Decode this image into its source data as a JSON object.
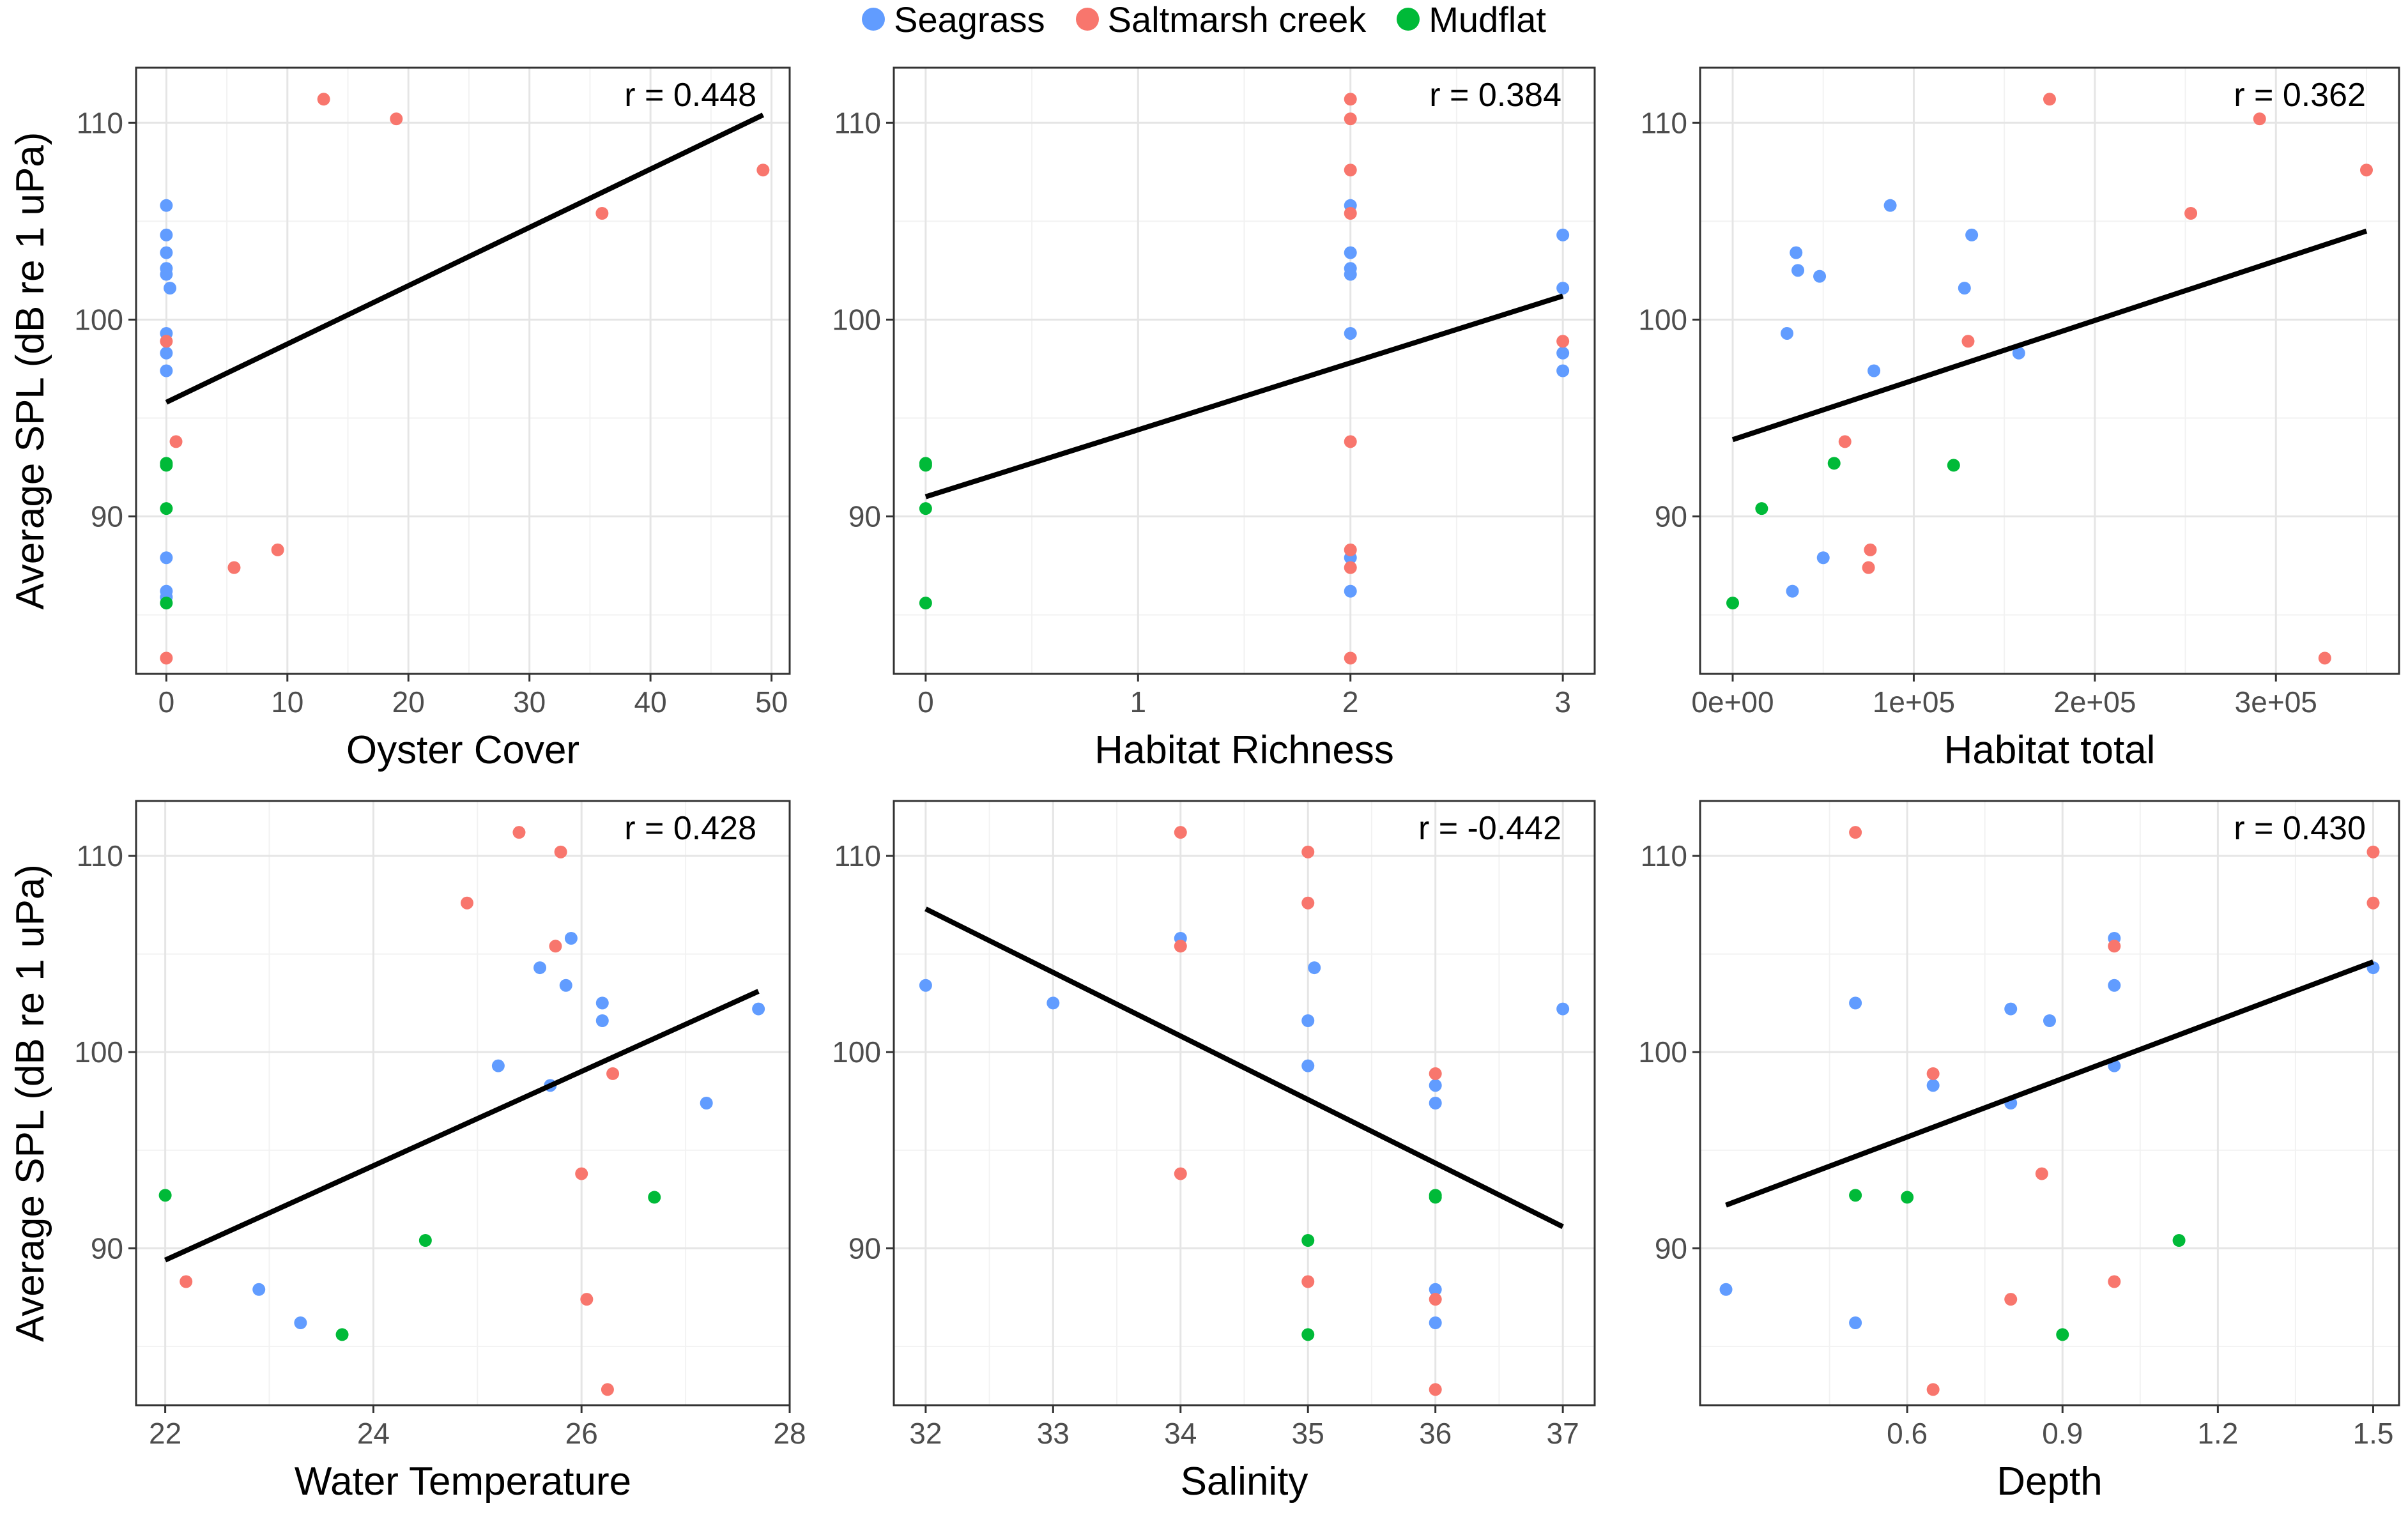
{
  "legend": {
    "position": "top",
    "items": [
      {
        "label": "Seagrass",
        "color": "#619CFF"
      },
      {
        "label": "Saltmarsh creek",
        "color": "#F8766D"
      },
      {
        "label": "Mudflat",
        "color": "#00BA38"
      }
    ]
  },
  "chart_data": [
    {
      "type": "scatter",
      "xlabel": "Oyster Cover",
      "ylabel": "Average SPL (dB re 1 uPa)",
      "annotation": "r = 0.448",
      "xlim": [
        -2.5,
        51.5
      ],
      "ylim": [
        82,
        112.8
      ],
      "xticks": [
        0,
        10,
        20,
        30,
        40,
        50
      ],
      "xtick_labels": [
        "0",
        "10",
        "20",
        "30",
        "40",
        "50"
      ],
      "yticks": [
        90,
        100,
        110
      ],
      "ytick_labels": [
        "90",
        "100",
        "110"
      ],
      "grid": true,
      "fit_line": {
        "x": [
          0,
          49.3
        ],
        "y": [
          95.8,
          110.4
        ]
      },
      "series": [
        {
          "name": "Seagrass",
          "color": "#619CFF",
          "points": [
            [
              0,
              105.8
            ],
            [
              0,
              104.3
            ],
            [
              0,
              103.4
            ],
            [
              0,
              102.6
            ],
            [
              0,
              102.3
            ],
            [
              0.3,
              101.6
            ],
            [
              0,
              99.3
            ],
            [
              0,
              98.3
            ],
            [
              0,
              97.4
            ],
            [
              0,
              87.9
            ],
            [
              0,
              86.2
            ],
            [
              0,
              85.9
            ]
          ]
        },
        {
          "name": "Saltmarsh creek",
          "color": "#F8766D",
          "points": [
            [
              13,
              111.2
            ],
            [
              19,
              110.2
            ],
            [
              49.3,
              107.6
            ],
            [
              36,
              105.4
            ],
            [
              0,
              98.9
            ],
            [
              0.8,
              93.8
            ],
            [
              9.2,
              88.3
            ],
            [
              5.6,
              87.4
            ],
            [
              0,
              82.8
            ]
          ]
        },
        {
          "name": "Mudflat",
          "color": "#00BA38",
          "points": [
            [
              0,
              92.7
            ],
            [
              0,
              92.6
            ],
            [
              0,
              90.4
            ],
            [
              0,
              85.6
            ]
          ]
        }
      ]
    },
    {
      "type": "scatter",
      "xlabel": "Habitat Richness",
      "ylabel": "",
      "annotation": "r = 0.384",
      "xlim": [
        -0.15,
        3.15
      ],
      "ylim": [
        82,
        112.8
      ],
      "xticks": [
        0,
        1,
        2,
        3
      ],
      "xtick_labels": [
        "0",
        "1",
        "2",
        "3"
      ],
      "yticks": [
        90,
        100,
        110
      ],
      "ytick_labels": [
        "90",
        "100",
        "110"
      ],
      "grid": true,
      "fit_line": {
        "x": [
          0,
          3
        ],
        "y": [
          91.0,
          101.2
        ]
      },
      "series": [
        {
          "name": "Seagrass",
          "color": "#619CFF",
          "points": [
            [
              2,
              105.8
            ],
            [
              2,
              103.4
            ],
            [
              2,
              102.6
            ],
            [
              2,
              102.3
            ],
            [
              2,
              99.3
            ],
            [
              2,
              87.9
            ],
            [
              2,
              86.2
            ],
            [
              3,
              104.3
            ],
            [
              3,
              101.6
            ],
            [
              3,
              98.3
            ],
            [
              3,
              97.4
            ]
          ]
        },
        {
          "name": "Saltmarsh creek",
          "color": "#F8766D",
          "points": [
            [
              2,
              111.2
            ],
            [
              2,
              110.2
            ],
            [
              2,
              107.6
            ],
            [
              2,
              105.4
            ],
            [
              2,
              93.8
            ],
            [
              2,
              88.3
            ],
            [
              2,
              87.4
            ],
            [
              2,
              82.8
            ],
            [
              3,
              98.9
            ]
          ]
        },
        {
          "name": "Mudflat",
          "color": "#00BA38",
          "points": [
            [
              0,
              92.7
            ],
            [
              0,
              92.6
            ],
            [
              0,
              90.4
            ],
            [
              0,
              85.6
            ]
          ]
        }
      ]
    },
    {
      "type": "scatter",
      "xlabel": "Habitat total",
      "ylabel": "",
      "annotation": "r = 0.362",
      "xlim": [
        -18000,
        368000
      ],
      "ylim": [
        82,
        112.8
      ],
      "xticks": [
        0,
        100000,
        200000,
        300000
      ],
      "xtick_labels": [
        "0e+00",
        "1e+05",
        "2e+05",
        "3e+05"
      ],
      "yticks": [
        90,
        100,
        110
      ],
      "ytick_labels": [
        "90",
        "100",
        "110"
      ],
      "grid": true,
      "fit_line": {
        "x": [
          0,
          350000
        ],
        "y": [
          93.9,
          104.5
        ]
      },
      "series": [
        {
          "name": "Seagrass",
          "color": "#619CFF",
          "points": [
            [
              87000,
              105.8
            ],
            [
              132000,
              104.3
            ],
            [
              35000,
              103.4
            ],
            [
              36000,
              102.5
            ],
            [
              48000,
              102.2
            ],
            [
              128000,
              101.6
            ],
            [
              30000,
              99.3
            ],
            [
              158000,
              98.3
            ],
            [
              78000,
              97.4
            ],
            [
              50000,
              87.9
            ],
            [
              33000,
              86.2
            ]
          ]
        },
        {
          "name": "Saltmarsh creek",
          "color": "#F8766D",
          "points": [
            [
              175000,
              111.2
            ],
            [
              291000,
              110.2
            ],
            [
              350000,
              107.6
            ],
            [
              253000,
              105.4
            ],
            [
              130000,
              98.9
            ],
            [
              62000,
              93.8
            ],
            [
              76000,
              88.3
            ],
            [
              75000,
              87.4
            ],
            [
              327000,
              82.8
            ]
          ]
        },
        {
          "name": "Mudflat",
          "color": "#00BA38",
          "points": [
            [
              56000,
              92.7
            ],
            [
              122000,
              92.6
            ],
            [
              16000,
              90.4
            ],
            [
              0,
              85.6
            ]
          ]
        }
      ]
    },
    {
      "type": "scatter",
      "xlabel": "Water Temperature",
      "ylabel": "Average SPL (dB re 1 uPa)",
      "annotation": "r = 0.428",
      "xlim": [
        21.72,
        28.0
      ],
      "ylim": [
        82,
        112.8
      ],
      "xticks": [
        22,
        24,
        26,
        28
      ],
      "xtick_labels": [
        "22",
        "24",
        "26",
        "28"
      ],
      "grid": true,
      "yticks": [
        90,
        100,
        110
      ],
      "ytick_labels": [
        "90",
        "100",
        "110"
      ],
      "fit_line": {
        "x": [
          22,
          27.7
        ],
        "y": [
          89.4,
          103.1
        ]
      },
      "series": [
        {
          "name": "Seagrass",
          "color": "#619CFF",
          "points": [
            [
              25.9,
              105.8
            ],
            [
              25.6,
              104.3
            ],
            [
              25.85,
              103.4
            ],
            [
              26.2,
              102.5
            ],
            [
              26.2,
              101.6
            ],
            [
              27.7,
              102.2
            ],
            [
              25.2,
              99.3
            ],
            [
              25.7,
              98.3
            ],
            [
              27.2,
              97.4
            ],
            [
              22.9,
              87.9
            ],
            [
              23.3,
              86.2
            ]
          ]
        },
        {
          "name": "Saltmarsh creek",
          "color": "#F8766D",
          "points": [
            [
              25.4,
              111.2
            ],
            [
              25.8,
              110.2
            ],
            [
              24.9,
              107.6
            ],
            [
              25.75,
              105.4
            ],
            [
              26.3,
              98.9
            ],
            [
              26.0,
              93.8
            ],
            [
              22.2,
              88.3
            ],
            [
              26.05,
              87.4
            ],
            [
              26.25,
              82.8
            ]
          ]
        },
        {
          "name": "Mudflat",
          "color": "#00BA38",
          "points": [
            [
              22.0,
              92.7
            ],
            [
              26.7,
              92.6
            ],
            [
              24.5,
              90.4
            ],
            [
              23.7,
              85.6
            ]
          ]
        }
      ]
    },
    {
      "type": "scatter",
      "xlabel": "Salinity",
      "ylabel": "",
      "annotation": "r = -0.442",
      "xlim": [
        31.75,
        37.25
      ],
      "ylim": [
        82,
        112.8
      ],
      "xticks": [
        32,
        33,
        34,
        35,
        36,
        37
      ],
      "xtick_labels": [
        "32",
        "33",
        "34",
        "35",
        "36",
        "37"
      ],
      "yticks": [
        90,
        100,
        110
      ],
      "ytick_labels": [
        "90",
        "100",
        "110"
      ],
      "grid": true,
      "fit_line": {
        "x": [
          32,
          37
        ],
        "y": [
          107.3,
          91.1
        ]
      },
      "series": [
        {
          "name": "Seagrass",
          "color": "#619CFF",
          "points": [
            [
              32,
              103.4
            ],
            [
              33,
              102.5
            ],
            [
              34,
              105.8
            ],
            [
              35.05,
              104.3
            ],
            [
              35,
              101.6
            ],
            [
              37,
              102.2
            ],
            [
              35,
              99.3
            ],
            [
              36,
              98.3
            ],
            [
              36,
              97.4
            ],
            [
              36,
              87.9
            ],
            [
              36,
              86.2
            ]
          ]
        },
        {
          "name": "Saltmarsh creek",
          "color": "#F8766D",
          "points": [
            [
              34,
              111.2
            ],
            [
              35,
              110.2
            ],
            [
              35,
              107.6
            ],
            [
              34,
              105.4
            ],
            [
              36,
              98.9
            ],
            [
              34,
              93.8
            ],
            [
              35,
              88.3
            ],
            [
              36,
              87.4
            ],
            [
              36,
              82.8
            ]
          ]
        },
        {
          "name": "Mudflat",
          "color": "#00BA38",
          "points": [
            [
              36,
              92.7
            ],
            [
              36,
              92.6
            ],
            [
              35,
              90.4
            ],
            [
              35,
              85.6
            ]
          ]
        }
      ]
    },
    {
      "type": "scatter",
      "xlabel": "Depth",
      "ylabel": "",
      "annotation": "r = 0.430",
      "xlim": [
        0.2,
        1.55
      ],
      "ylim": [
        82,
        112.8
      ],
      "xticks": [
        0.6,
        0.9,
        1.2,
        1.5
      ],
      "xtick_labels": [
        "0.6",
        "0.9",
        "1.2",
        "1.5"
      ],
      "yticks": [
        90,
        100,
        110
      ],
      "ytick_labels": [
        "90",
        "100",
        "110"
      ],
      "grid": true,
      "fit_line": {
        "x": [
          0.25,
          1.5
        ],
        "y": [
          92.2,
          104.6
        ]
      },
      "series": [
        {
          "name": "Seagrass",
          "color": "#619CFF",
          "points": [
            [
              1.0,
              105.8
            ],
            [
              1.5,
              104.3
            ],
            [
              1.0,
              103.4
            ],
            [
              0.5,
              102.5
            ],
            [
              0.8,
              102.2
            ],
            [
              0.875,
              101.6
            ],
            [
              1.0,
              99.3
            ],
            [
              0.65,
              98.3
            ],
            [
              0.8,
              97.4
            ],
            [
              0.25,
              87.9
            ],
            [
              0.5,
              86.2
            ]
          ]
        },
        {
          "name": "Saltmarsh creek",
          "color": "#F8766D",
          "points": [
            [
              0.5,
              111.2
            ],
            [
              1.5,
              110.2
            ],
            [
              1.5,
              107.6
            ],
            [
              1.0,
              105.4
            ],
            [
              0.65,
              98.9
            ],
            [
              0.86,
              93.8
            ],
            [
              1.0,
              88.3
            ],
            [
              0.8,
              87.4
            ],
            [
              0.65,
              82.8
            ]
          ]
        },
        {
          "name": "Mudflat",
          "color": "#00BA38",
          "points": [
            [
              0.5,
              92.7
            ],
            [
              0.6,
              92.6
            ],
            [
              1.125,
              90.4
            ],
            [
              0.9,
              85.6
            ]
          ]
        }
      ]
    }
  ]
}
